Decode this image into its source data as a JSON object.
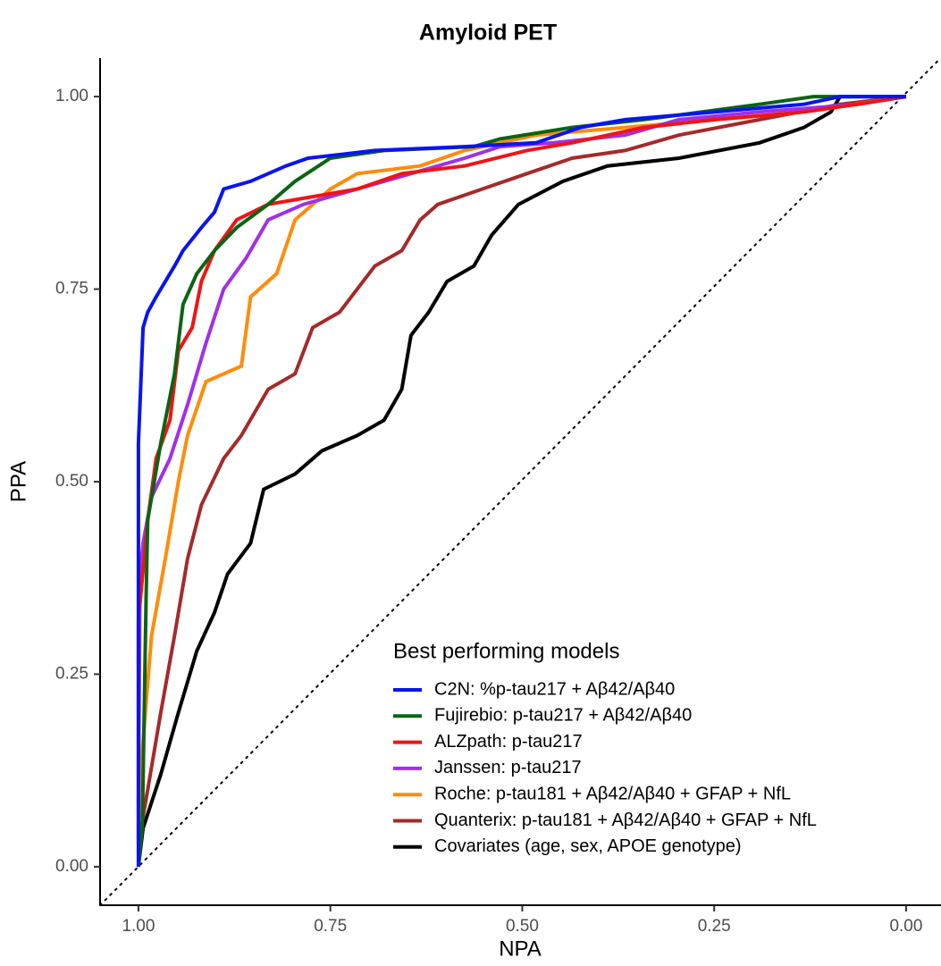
{
  "chart_data": {
    "type": "line",
    "title": "Amyloid PET",
    "x_label": "NPA",
    "y_label": "PPA",
    "xlim": [
      1.05,
      -0.045
    ],
    "ylim": [
      -0.05,
      1.05
    ],
    "xticks": [
      {
        "value": 1,
        "label": "1.00"
      },
      0.75,
      {
        "value": 0.5,
        "label": "0.50"
      },
      0.25,
      {
        "value": 0,
        "label": "0.00"
      }
    ],
    "yticks": [
      {
        "value": 0,
        "label": "0.00"
      },
      0.25,
      {
        "value": 0.5,
        "label": "0.50"
      },
      0.75,
      {
        "value": 1,
        "label": "1.00"
      }
    ],
    "legend_title": "Best performing models",
    "legend_position": "bottom-right",
    "series": [
      {
        "name": "C2N: %p-tau217 + Aβ42/Aβ40",
        "color": "#0a14f0",
        "x": [
          1,
          1,
          0.994,
          0.988,
          0.977,
          0.953,
          0.942,
          0.918,
          0.901,
          0.889,
          0.854,
          0.808,
          0.779,
          0.692,
          0.575,
          0.482,
          0.424,
          0.366,
          0.249,
          0.133,
          0.086,
          0
        ],
        "values": [
          0,
          0.55,
          0.7,
          0.72,
          0.74,
          0.78,
          0.8,
          0.83,
          0.85,
          0.88,
          0.89,
          0.91,
          0.92,
          0.93,
          0.935,
          0.94,
          0.96,
          0.97,
          0.98,
          0.99,
          1,
          1
        ]
      },
      {
        "name": "Fujirebio: p-tau217 + Aβ42/Aβ40",
        "color": "#0b6413",
        "x": [
          1,
          0.995,
          0.99,
          0.988,
          0.971,
          0.953,
          0.942,
          0.924,
          0.901,
          0.872,
          0.831,
          0.796,
          0.75,
          0.68,
          0.563,
          0.529,
          0.435,
          0.342,
          0.191,
          0.121,
          0
        ],
        "values": [
          0,
          0.05,
          0.35,
          0.45,
          0.55,
          0.64,
          0.73,
          0.77,
          0.8,
          0.83,
          0.86,
          0.89,
          0.92,
          0.93,
          0.935,
          0.945,
          0.96,
          0.97,
          0.99,
          1,
          1
        ]
      },
      {
        "name": "ALZpath: p-tau217",
        "color": "#f01414",
        "x": [
          1,
          1,
          0.988,
          0.977,
          0.959,
          0.948,
          0.93,
          0.918,
          0.901,
          0.872,
          0.831,
          0.773,
          0.715,
          0.657,
          0.575,
          0.494,
          0.435,
          0.342,
          0.249,
          0.133,
          0.063,
          0
        ],
        "values": [
          0.03,
          0.32,
          0.45,
          0.53,
          0.58,
          0.67,
          0.7,
          0.76,
          0.8,
          0.84,
          0.86,
          0.87,
          0.88,
          0.9,
          0.91,
          0.93,
          0.94,
          0.96,
          0.97,
          0.98,
          0.99,
          1
        ]
      },
      {
        "name": "Janssen: p-tau217",
        "color": "#a030e8",
        "x": [
          1,
          0.998,
          0.994,
          0.983,
          0.959,
          0.936,
          0.912,
          0.889,
          0.86,
          0.831,
          0.785,
          0.715,
          0.645,
          0.575,
          0.529,
          0.459,
          0.366,
          0.296,
          0.191,
          0.063,
          0
        ],
        "values": [
          0.08,
          0.38,
          0.42,
          0.48,
          0.53,
          0.6,
          0.68,
          0.75,
          0.79,
          0.84,
          0.86,
          0.88,
          0.9,
          0.92,
          0.935,
          0.94,
          0.95,
          0.97,
          0.98,
          0.99,
          1
        ]
      },
      {
        "name": "Roche: p-tau181 + Aβ42/Aβ40 + GFAP + NfL",
        "color": "#ff8c0a",
        "x": [
          1,
          0.995,
          0.983,
          0.965,
          0.948,
          0.936,
          0.912,
          0.866,
          0.854,
          0.82,
          0.796,
          0.75,
          0.715,
          0.633,
          0.575,
          0.482,
          0.366,
          0.249,
          0.133,
          0
        ],
        "values": [
          0.05,
          0.15,
          0.3,
          0.4,
          0.5,
          0.56,
          0.63,
          0.65,
          0.74,
          0.77,
          0.84,
          0.88,
          0.9,
          0.91,
          0.93,
          0.95,
          0.96,
          0.97,
          0.98,
          1
        ]
      },
      {
        "name": "Quanterix: p-tau181 + Aβ42/Aβ40 + GFAP + NfL",
        "color": "#a52a2a",
        "x": [
          1,
          0.988,
          0.971,
          0.953,
          0.936,
          0.918,
          0.889,
          0.866,
          0.831,
          0.796,
          0.773,
          0.738,
          0.692,
          0.657,
          0.633,
          0.61,
          0.552,
          0.494,
          0.435,
          0.366,
          0.296,
          0.191,
          0.086,
          0
        ],
        "values": [
          0.03,
          0.1,
          0.2,
          0.3,
          0.4,
          0.47,
          0.53,
          0.56,
          0.62,
          0.64,
          0.7,
          0.72,
          0.78,
          0.8,
          0.84,
          0.86,
          0.88,
          0.9,
          0.92,
          0.93,
          0.95,
          0.97,
          0.99,
          1
        ]
      },
      {
        "name": "Covariates (age, sex, APOE genotype)",
        "color": "#000000",
        "x": [
          1,
          0.994,
          0.971,
          0.948,
          0.924,
          0.901,
          0.884,
          0.854,
          0.837,
          0.796,
          0.761,
          0.715,
          0.68,
          0.657,
          0.645,
          0.622,
          0.598,
          0.563,
          0.54,
          0.505,
          0.447,
          0.389,
          0.296,
          0.191,
          0.133,
          0.098,
          0.086,
          0
        ],
        "values": [
          0,
          0.05,
          0.12,
          0.2,
          0.28,
          0.33,
          0.38,
          0.42,
          0.49,
          0.51,
          0.54,
          0.56,
          0.58,
          0.62,
          0.69,
          0.72,
          0.76,
          0.78,
          0.82,
          0.86,
          0.89,
          0.91,
          0.92,
          0.94,
          0.96,
          0.98,
          1,
          1
        ]
      }
    ]
  }
}
